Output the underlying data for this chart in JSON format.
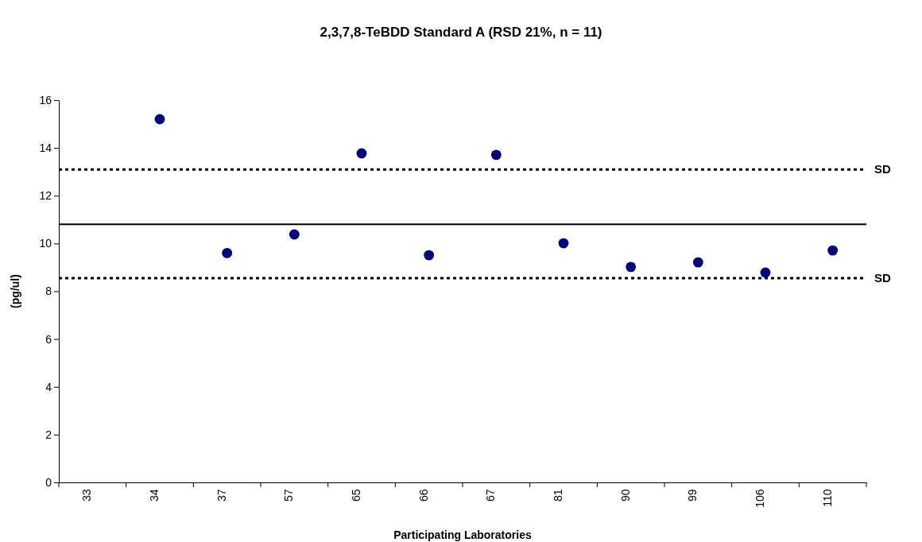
{
  "chart_data": {
    "type": "scatter",
    "title": "2,3,7,8-TeBDD Standard A (RSD 21%, n = 11)",
    "xlabel": "Participating Laboratories",
    "ylabel": "(pg/ul)",
    "categories": [
      "33",
      "34",
      "37",
      "57",
      "65",
      "66",
      "67",
      "81",
      "90",
      "99",
      "106",
      "110"
    ],
    "series": [
      {
        "color": "#000080",
        "values": [
          null,
          15.2,
          9.6,
          10.38,
          13.77,
          9.51,
          13.71,
          10.01,
          9.02,
          9.21,
          8.78,
          9.71
        ]
      }
    ],
    "marker": "circle",
    "grid": false,
    "ylim": [
      0,
      16
    ],
    "yticks": [
      0,
      2,
      4,
      6,
      8,
      10,
      12,
      14,
      16
    ],
    "ref_lines": [
      {
        "axis": "y",
        "value": 10.8,
        "color": "#000000",
        "line_style": "solid"
      },
      {
        "axis": "y",
        "value": 13.1,
        "label": "SD",
        "color": "#000000",
        "line_style": "dotted"
      },
      {
        "axis": "y",
        "value": 8.55,
        "label": "SD",
        "color": "#000000",
        "line_style": "dotted"
      }
    ]
  }
}
